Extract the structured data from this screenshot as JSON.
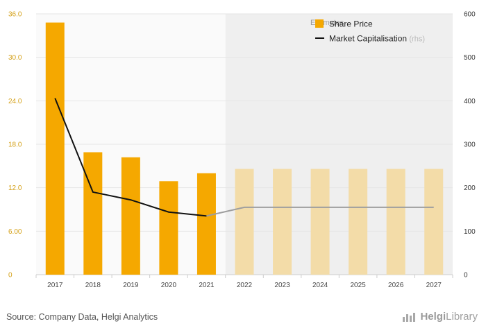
{
  "chart_data": {
    "type": "bar",
    "categories": [
      "2017",
      "2018",
      "2019",
      "2020",
      "2021",
      "2022",
      "2023",
      "2024",
      "2025",
      "2026",
      "2027"
    ],
    "estimates_label": "Estimates",
    "estimates_start_index": 5,
    "series": [
      {
        "name": "Share Price",
        "kind": "bar",
        "axis": "left",
        "values": [
          34.8,
          16.9,
          16.2,
          12.9,
          14.0,
          14.6,
          14.6,
          14.6,
          14.6,
          14.6,
          14.6
        ],
        "color": "#f5a800",
        "estimate_color": "#f3dca8"
      },
      {
        "name": "Market Capitalisation",
        "name_suffix": "(rhs)",
        "kind": "line",
        "axis": "right",
        "values": [
          406,
          190,
          172,
          144,
          135,
          155,
          155,
          155,
          155,
          155,
          155
        ],
        "color": "#111111",
        "estimate_color": "#9e9e9e"
      }
    ],
    "left_axis": {
      "min": 0,
      "max": 36,
      "ticks": [
        "0",
        "6.00",
        "12.0",
        "18.0",
        "24.0",
        "30.0",
        "36.0"
      ]
    },
    "right_axis": {
      "min": 0,
      "max": 600,
      "ticks": [
        "0",
        "100",
        "200",
        "300",
        "400",
        "500",
        "600"
      ]
    },
    "grid": true,
    "legend_position": "top-right"
  },
  "footer": {
    "source": "Source: Company Data, Helgi Analytics",
    "logo_prefix": "Helgi",
    "logo_suffix": "Library"
  },
  "colors": {
    "plot_background": "#fafafa",
    "estimate_background": "#efefef",
    "grid": "#e6e6e6"
  }
}
